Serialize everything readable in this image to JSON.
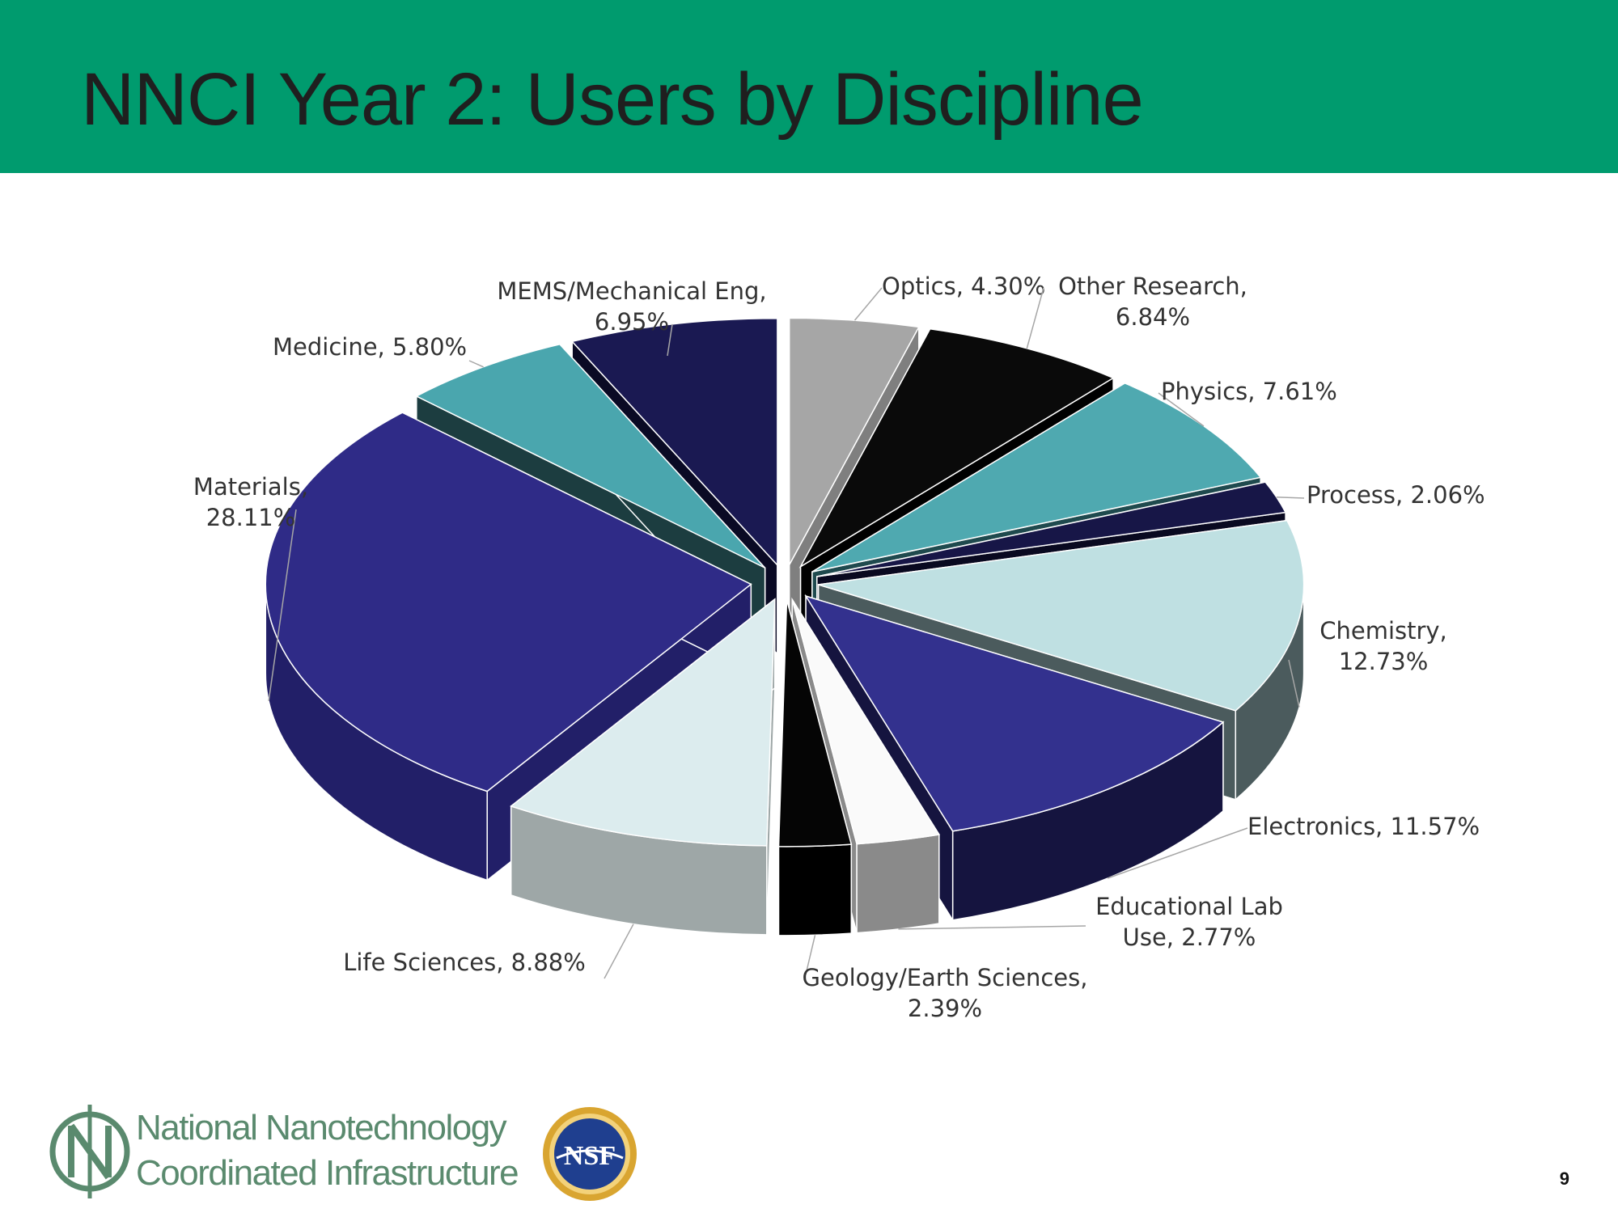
{
  "slide": {
    "title": "NNCI Year 2: Users by Discipline",
    "page_number": "9",
    "header_color": "#009b6e"
  },
  "logo": {
    "line1": "National Nanotechnology",
    "line2": "Coordinated Infrastructure",
    "nsf_text": "NSF"
  },
  "chart_data": {
    "type": "pie",
    "style": "3d-exploded",
    "title": "",
    "slices": [
      {
        "name": "Optics",
        "value": 4.3,
        "label": [
          "Optics, 4.30%"
        ],
        "top_color": "#a6a6a6",
        "side_color": "#7f7f7f"
      },
      {
        "name": "Other Research",
        "value": 6.84,
        "label": [
          "Other Research,",
          "6.84%"
        ],
        "top_color": "#0a0a0a",
        "side_color": "#000000"
      },
      {
        "name": "Physics",
        "value": 7.61,
        "label": [
          "Physics, 7.61%"
        ],
        "top_color": "#4fa9b0",
        "side_color": "#1f4a4e"
      },
      {
        "name": "Process",
        "value": 2.06,
        "label": [
          "Process, 2.06%"
        ],
        "top_color": "#171647",
        "side_color": "#090920"
      },
      {
        "name": "Chemistry",
        "value": 12.73,
        "label": [
          "Chemistry,",
          "12.73%"
        ],
        "top_color": "#bfe0e2",
        "side_color": "#4b5b5d"
      },
      {
        "name": "Electronics",
        "value": 11.57,
        "label": [
          "Electronics, 11.57%"
        ],
        "top_color": "#33318e",
        "side_color": "#15143f"
      },
      {
        "name": "Educational Lab Use",
        "value": 2.77,
        "label": [
          "Educational Lab",
          "Use, 2.77%"
        ],
        "top_color": "#fafafa",
        "side_color": "#8a8a8a"
      },
      {
        "name": "Geology/Earth Sciences",
        "value": 2.39,
        "label": [
          "Geology/Earth Sciences,",
          "2.39%"
        ],
        "top_color": "#050505",
        "side_color": "#000000"
      },
      {
        "name": "Life Sciences",
        "value": 8.88,
        "label": [
          "Life Sciences, 8.88%"
        ],
        "top_color": "#dcecee",
        "side_color": "#9ea7a7"
      },
      {
        "name": "Materials",
        "value": 28.11,
        "label": [
          "Materials,",
          "28.11%"
        ],
        "top_color": "#2f2b87",
        "side_color": "#221f68"
      },
      {
        "name": "Medicine",
        "value": 5.8,
        "label": [
          "Medicine, 5.80%"
        ],
        "top_color": "#4aa6ae",
        "side_color": "#1c3d40"
      },
      {
        "name": "MEMS/Mechanical Eng",
        "value": 6.95,
        "label": [
          "MEMS/Mechanical Eng,",
          "6.95%"
        ],
        "top_color": "#1a1952",
        "side_color": "#0a0a24"
      }
    ],
    "legend": "none"
  }
}
